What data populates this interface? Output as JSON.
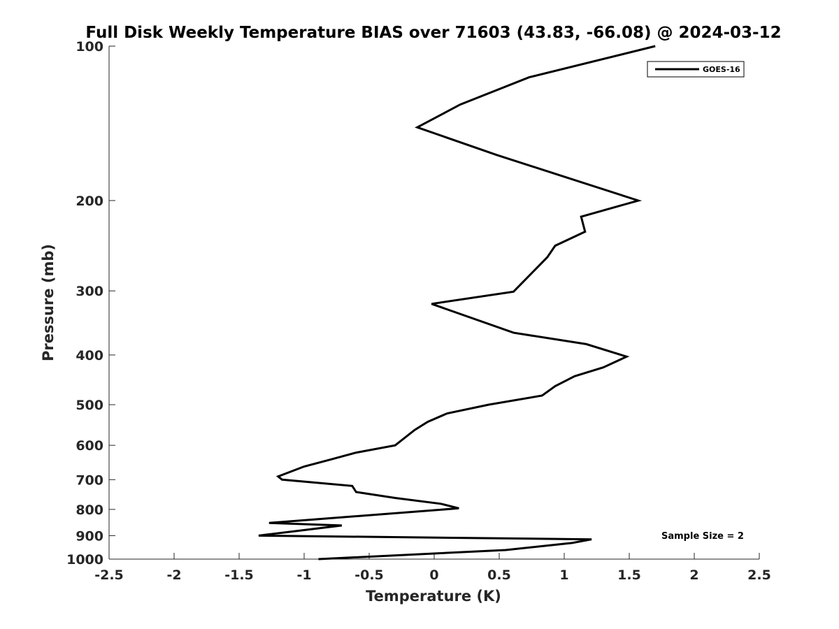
{
  "chart_data": {
    "type": "line",
    "title": "Full Disk Weekly Temperature BIAS over 71603 (43.83, -66.08) @ 2024-03-12",
    "xlabel": "Temperature (K)",
    "ylabel": "Pressure (mb)",
    "xlim": [
      -2.5,
      2.5
    ],
    "ylim": [
      1000,
      100
    ],
    "y_scale": "log",
    "y_reversed": true,
    "grid": false,
    "xticks": [
      -2.5,
      -2,
      -1.5,
      -1,
      -0.5,
      0,
      0.5,
      1,
      1.5,
      2,
      2.5
    ],
    "xtick_labels": [
      "-2.5",
      "-2",
      "-1.5",
      "-1",
      "-0.5",
      "0",
      "0.5",
      "1",
      "1.5",
      "2",
      "2.5"
    ],
    "yticks": [
      100,
      200,
      300,
      400,
      500,
      600,
      700,
      800,
      900,
      1000
    ],
    "ytick_labels": [
      "100",
      "200",
      "300",
      "400",
      "500",
      "600",
      "700",
      "800",
      "900",
      "1000"
    ],
    "legend_position": "top-right",
    "annotation": "Sample Size = 2",
    "series": [
      {
        "name": "GOES-16",
        "color": "#000000",
        "x": [
          1.7,
          0.73,
          0.2,
          -0.13,
          0.48,
          1.57,
          1.13,
          1.16,
          0.93,
          0.87,
          0.61,
          -0.02,
          0.61,
          1.17,
          1.48,
          1.3,
          1.08,
          0.93,
          0.83,
          0.42,
          0.1,
          -0.05,
          -0.15,
          -0.3,
          -0.6,
          -0.8,
          -1.0,
          -1.2,
          -1.17,
          -0.63,
          -0.6,
          -0.3,
          0.05,
          0.19,
          -1.27,
          -0.71,
          -1.35,
          1.21,
          1.06,
          0.55,
          -0.89
        ],
        "y": [
          100,
          115,
          130,
          144,
          163,
          200,
          215,
          230,
          245,
          258,
          301,
          318,
          362,
          381,
          403,
          423,
          440,
          460,
          480,
          500,
          520,
          540,
          560,
          600,
          620,
          640,
          660,
          690,
          700,
          720,
          740,
          760,
          780,
          796,
          850,
          860,
          900,
          915,
          930,
          960,
          1000
        ]
      }
    ]
  }
}
